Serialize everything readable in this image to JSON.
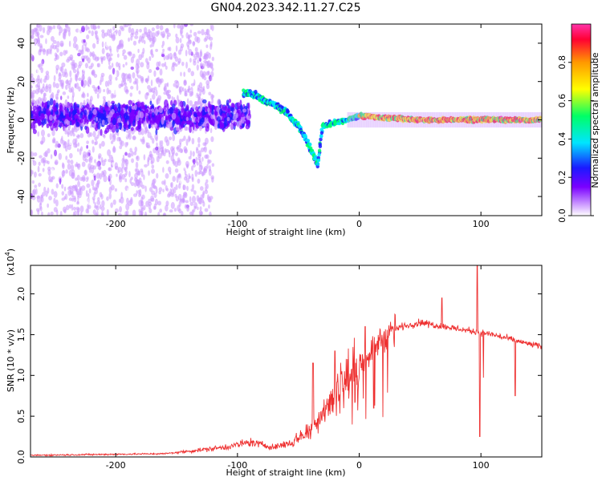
{
  "title": "GN04.2023.342.11.27.C25",
  "colors": {
    "background": "#ffffff",
    "snr_line": "#ee3030",
    "axis": "#000000"
  },
  "chart_data": [
    {
      "type": "heatmap",
      "xlabel": "Height of straight line (km)",
      "ylabel": "Frequency (Hz)",
      "xlim": [
        -270,
        150
      ],
      "ylim": [
        -50,
        50
      ],
      "xticks": [
        -200,
        -100,
        0,
        100
      ],
      "yticks": [
        -40,
        -20,
        0,
        20,
        40
      ],
      "colorbar": {
        "label": "Normalized spectral amplitude",
        "range": [
          0,
          1
        ],
        "ticks": [
          0.0,
          0.2,
          0.4,
          0.6,
          0.8
        ],
        "colors": [
          "#ffffff",
          "#cc99ff",
          "#7a00ff",
          "#1a1aff",
          "#00e5ff",
          "#00ff66",
          "#ffff00",
          "#ff9900",
          "#ff0033",
          "#ff33aa"
        ]
      },
      "ridge": [
        {
          "x": -90,
          "y": 14
        },
        {
          "x": -80,
          "y": 11
        },
        {
          "x": -70,
          "y": 8
        },
        {
          "x": -60,
          "y": 4
        },
        {
          "x": -50,
          "y": -3
        },
        {
          "x": -40,
          "y": -15
        },
        {
          "x": -34,
          "y": -23
        },
        {
          "x": -30,
          "y": -3
        },
        {
          "x": -10,
          "y": 0
        },
        {
          "x": 0,
          "y": 2
        },
        {
          "x": 50,
          "y": 0
        },
        {
          "x": 150,
          "y": 0
        }
      ]
    },
    {
      "type": "line",
      "xlabel": "Height of straight line (km)",
      "ylabel": "SNR (10 * v/v)",
      "yscale_label": "(x10",
      "yscale_exp": "4",
      "xlim": [
        -270,
        150
      ],
      "ylim": [
        0,
        2.35
      ],
      "xticks": [
        -200,
        -100,
        0,
        100
      ],
      "yticks": [
        0.0,
        0.5,
        1.0,
        1.5,
        2.0
      ],
      "envelope": [
        {
          "x": -270,
          "y": 0.02
        },
        {
          "x": -160,
          "y": 0.04
        },
        {
          "x": -140,
          "y": 0.07
        },
        {
          "x": -110,
          "y": 0.12
        },
        {
          "x": -90,
          "y": 0.18
        },
        {
          "x": -70,
          "y": 0.12
        },
        {
          "x": -55,
          "y": 0.18
        },
        {
          "x": -40,
          "y": 0.35
        },
        {
          "x": -30,
          "y": 0.55
        },
        {
          "x": -15,
          "y": 0.9
        },
        {
          "x": 0,
          "y": 1.1
        },
        {
          "x": 15,
          "y": 1.4
        },
        {
          "x": 30,
          "y": 1.58
        },
        {
          "x": 50,
          "y": 1.65
        },
        {
          "x": 70,
          "y": 1.6
        },
        {
          "x": 90,
          "y": 1.55
        },
        {
          "x": 110,
          "y": 1.5
        },
        {
          "x": 130,
          "y": 1.42
        },
        {
          "x": 150,
          "y": 1.35
        }
      ],
      "spikes": [
        {
          "x": -38,
          "y": 1.15
        },
        {
          "x": -20,
          "y": 1.3
        },
        {
          "x": 5,
          "y": 1.6
        },
        {
          "x": 12,
          "y": 0.6
        },
        {
          "x": 68,
          "y": 1.95
        },
        {
          "x": 97,
          "y": 2.35
        },
        {
          "x": 99,
          "y": 0.25
        },
        {
          "x": 128,
          "y": 0.75
        }
      ]
    }
  ]
}
